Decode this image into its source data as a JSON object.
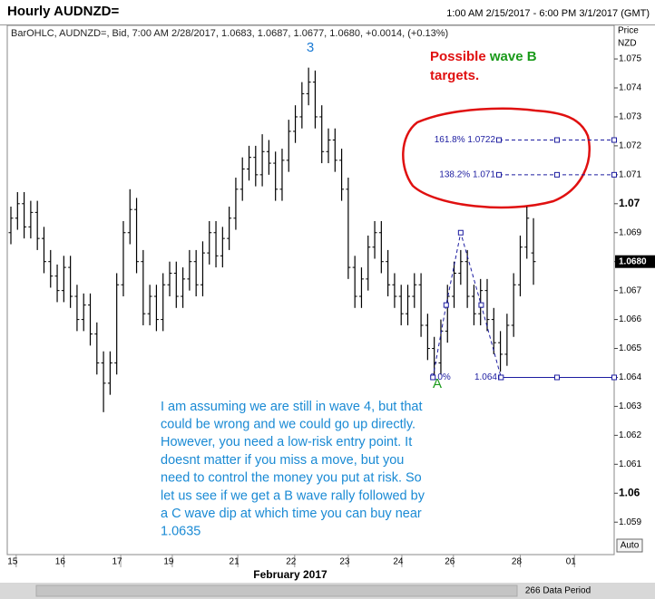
{
  "chart_data": {
    "type": "ohlc",
    "title": "Hourly AUDNZD=",
    "date_range": "1:00 AM 2/15/2017 - 6:00 PM 3/1/2017 (GMT)",
    "subtitle": "BarOHLC, AUDNZD=, Bid, 7:00 AM 2/28/2017, 1.0683, 1.0687, 1.0677, 1.0680, +0.0014, (+0.13%)",
    "y_axis_label": [
      "Price",
      "NZD"
    ],
    "x_axis_label": "February 2017",
    "data_period": "266 Data Period",
    "auto_button": "Auto",
    "color": "#000000",
    "bars": [
      [
        1.069,
        1.0699,
        1.0686,
        1.0695
      ],
      [
        1.0695,
        1.0704,
        1.0691,
        1.07
      ],
      [
        1.07,
        1.0704,
        1.0688,
        1.0692
      ],
      [
        1.0692,
        1.0701,
        1.0688,
        1.0697
      ],
      [
        1.0697,
        1.0701,
        1.0684,
        1.0688
      ],
      [
        1.0688,
        1.0692,
        1.0676,
        1.068
      ],
      [
        1.068,
        1.0684,
        1.0671,
        1.0675
      ],
      [
        1.0675,
        1.0679,
        1.0666,
        1.067
      ],
      [
        1.067,
        1.0682,
        1.0666,
        1.0678
      ],
      [
        1.0678,
        1.0682,
        1.0664,
        1.0668
      ],
      [
        1.0668,
        1.0672,
        1.0656,
        1.066
      ],
      [
        1.066,
        1.0669,
        1.0656,
        1.0665
      ],
      [
        1.0665,
        1.0669,
        1.0651,
        1.0655
      ],
      [
        1.0655,
        1.0659,
        1.0641,
        1.0645
      ],
      [
        1.0645,
        1.0649,
        1.0628,
        1.0638
      ],
      [
        1.0638,
        1.0649,
        1.0634,
        1.0645
      ],
      [
        1.0645,
        1.0676,
        1.0641,
        1.0672
      ],
      [
        1.0672,
        1.0694,
        1.0668,
        1.069
      ],
      [
        1.069,
        1.0705,
        1.0686,
        1.0698
      ],
      [
        1.0698,
        1.0702,
        1.0676,
        1.068
      ],
      [
        1.068,
        1.0684,
        1.0658,
        1.0662
      ],
      [
        1.0662,
        1.0672,
        1.0658,
        1.0668
      ],
      [
        1.0668,
        1.0672,
        1.0656,
        1.066
      ],
      [
        1.066,
        1.0676,
        1.0656,
        1.0672
      ],
      [
        1.0672,
        1.068,
        1.0668,
        1.0676
      ],
      [
        1.0676,
        1.068,
        1.0664,
        1.0668
      ],
      [
        1.0668,
        1.0678,
        1.0664,
        1.0674
      ],
      [
        1.0674,
        1.0684,
        1.067,
        1.068
      ],
      [
        1.068,
        1.0684,
        1.0668,
        1.0672
      ],
      [
        1.0672,
        1.0687,
        1.0668,
        1.0683
      ],
      [
        1.0683,
        1.0694,
        1.0679,
        1.069
      ],
      [
        1.069,
        1.0694,
        1.0678,
        1.0682
      ],
      [
        1.0682,
        1.0692,
        1.0678,
        1.0688
      ],
      [
        1.0688,
        1.0699,
        1.0684,
        1.0695
      ],
      [
        1.0695,
        1.0709,
        1.0691,
        1.0705
      ],
      [
        1.0705,
        1.0716,
        1.0701,
        1.0712
      ],
      [
        1.0712,
        1.072,
        1.0708,
        1.0716
      ],
      [
        1.0716,
        1.072,
        1.0706,
        1.071
      ],
      [
        1.071,
        1.0724,
        1.0706,
        1.0718
      ],
      [
        1.0718,
        1.0722,
        1.071,
        1.0714
      ],
      [
        1.0714,
        1.0718,
        1.0701,
        1.0705
      ],
      [
        1.0705,
        1.0719,
        1.0701,
        1.0715
      ],
      [
        1.0715,
        1.0729,
        1.0711,
        1.0725
      ],
      [
        1.0725,
        1.0734,
        1.0721,
        1.073
      ],
      [
        1.073,
        1.0742,
        1.0726,
        1.0738
      ],
      [
        1.0738,
        1.0747,
        1.0734,
        1.0742
      ],
      [
        1.0742,
        1.0746,
        1.0726,
        1.073
      ],
      [
        1.073,
        1.0734,
        1.0714,
        1.0718
      ],
      [
        1.0718,
        1.0726,
        1.0714,
        1.0722
      ],
      [
        1.0722,
        1.0726,
        1.0711,
        1.0715
      ],
      [
        1.0715,
        1.0719,
        1.0701,
        1.0705
      ],
      [
        1.0705,
        1.0709,
        1.0674,
        1.0678
      ],
      [
        1.0678,
        1.0682,
        1.0664,
        1.0668
      ],
      [
        1.0668,
        1.0678,
        1.0664,
        1.0674
      ],
      [
        1.0674,
        1.0689,
        1.067,
        1.0685
      ],
      [
        1.0685,
        1.0694,
        1.0681,
        1.069
      ],
      [
        1.069,
        1.0694,
        1.0676,
        1.068
      ],
      [
        1.068,
        1.0684,
        1.0668,
        1.0672
      ],
      [
        1.0672,
        1.0676,
        1.0664,
        1.0668
      ],
      [
        1.0668,
        1.0672,
        1.0658,
        1.0662
      ],
      [
        1.0662,
        1.0672,
        1.0658,
        1.0668
      ],
      [
        1.0668,
        1.0676,
        1.0664,
        1.0672
      ],
      [
        1.0672,
        1.0676,
        1.0654,
        1.0658
      ],
      [
        1.0658,
        1.0662,
        1.0646,
        1.065
      ],
      [
        1.065,
        1.0654,
        1.064,
        1.0645
      ],
      [
        1.0645,
        1.066,
        1.0641,
        1.0656
      ],
      [
        1.0656,
        1.0672,
        1.0652,
        1.0668
      ],
      [
        1.0668,
        1.068,
        1.0664,
        1.0676
      ],
      [
        1.0676,
        1.0684,
        1.0672,
        1.068
      ],
      [
        1.068,
        1.0684,
        1.0664,
        1.0668
      ],
      [
        1.0668,
        1.0672,
        1.0658,
        1.0662
      ],
      [
        1.0662,
        1.0674,
        1.0658,
        1.067
      ],
      [
        1.067,
        1.0674,
        1.0656,
        1.066
      ],
      [
        1.066,
        1.0664,
        1.0648,
        1.0652
      ],
      [
        1.0652,
        1.0656,
        1.0642,
        1.0648
      ],
      [
        1.0648,
        1.0662,
        1.0644,
        1.0658
      ],
      [
        1.0658,
        1.0676,
        1.0654,
        1.0672
      ],
      [
        1.0672,
        1.0689,
        1.0668,
        1.0685
      ],
      [
        1.0685,
        1.0699,
        1.0681,
        1.0695
      ],
      [
        1.0683,
        1.0695,
        1.0672,
        1.068
      ]
    ],
    "xlim": [
      -0.55,
      91.2
    ],
    "xticks": [
      {
        "value": 0.8,
        "label": "15"
      },
      {
        "value": 8,
        "label": "16"
      },
      {
        "value": 16.6,
        "label": "17"
      },
      {
        "value": 24.4,
        "label": "19"
      },
      {
        "value": 34.3,
        "label": "21"
      },
      {
        "value": 42.9,
        "label": "22"
      },
      {
        "value": 51,
        "label": "23"
      },
      {
        "value": 59.1,
        "label": "24"
      },
      {
        "value": 66.9,
        "label": "26"
      },
      {
        "value": 77,
        "label": "28"
      },
      {
        "value": 85.2,
        "label": "01"
      }
    ],
    "ylim": [
      1.05788,
      1.07616
    ],
    "yticks": [
      1.059,
      1.06,
      1.061,
      1.062,
      1.063,
      1.064,
      1.065,
      1.066,
      1.067,
      1.068,
      1.069,
      1.07,
      1.071,
      1.072,
      1.073,
      1.074,
      1.075
    ],
    "last_price": {
      "value": 1.068,
      "label": "1.0680"
    },
    "fib_levels": [
      {
        "value": 1.0722,
        "label": "161.8% 1.0722",
        "style": "dashed"
      },
      {
        "value": 1.071,
        "label": "138.2% 1.071",
        "style": "dashed"
      },
      {
        "value": 1.064,
        "label": "1.064",
        "style": "solid"
      }
    ],
    "fib_zero_label": "0.0%",
    "wave_path": {
      "x": [
        63.8,
        65.8,
        68.0,
        71.1,
        74.1
      ],
      "y": [
        1.064,
        1.0665,
        1.069,
        1.0665,
        1.064
      ]
    },
    "wave_labels": {
      "three": "3",
      "a": "A"
    },
    "target_note": [
      "Possible",
      "wave B",
      "targets."
    ],
    "comment": [
      "I am assuming we are still in wave 4, but that",
      "could be wrong and we could go up directly.",
      "However, you need a low-risk entry point. It",
      "doesnt matter if you miss a move, but you",
      "need to control the money you put at risk. So",
      "let us see if we get a B wave rally followed by",
      "a C wave dip at which time you can buy near",
      "1.0635"
    ]
  }
}
